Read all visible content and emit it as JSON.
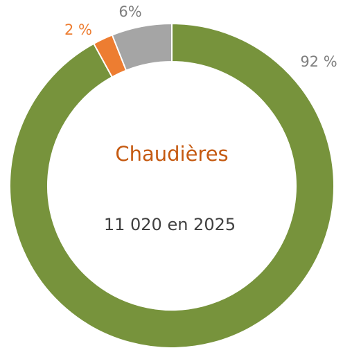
{
  "chart_data": {
    "type": "donut",
    "center_title": "Chaudières",
    "center_subtitle": "11 020 en 2025",
    "categories": [
      null,
      null,
      null
    ],
    "values": [
      92,
      2,
      6
    ],
    "value_labels": [
      "92 %",
      "2 %",
      "6%"
    ],
    "colors": [
      "#77933c",
      "#ed7d31",
      "#a5a5a5"
    ],
    "label_colors": [
      "#7f7f7f",
      "#ed7d31",
      "#7f7f7f"
    ]
  }
}
